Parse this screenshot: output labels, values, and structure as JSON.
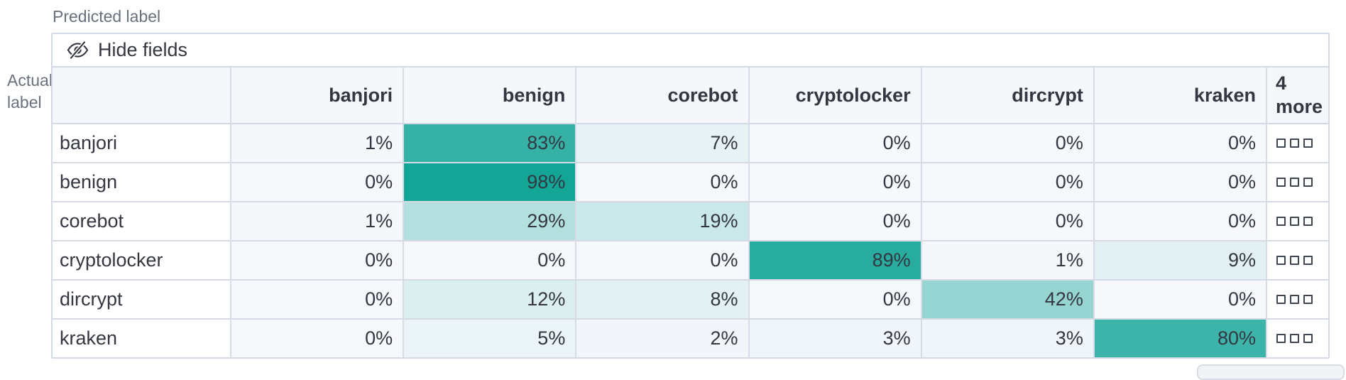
{
  "axes": {
    "predicted": "Predicted label",
    "actual": "Actual label"
  },
  "toolbar": {
    "hide_fields_label": "Hide fields"
  },
  "matrix": {
    "type": "heatmap",
    "value_suffix": "%",
    "columns": [
      "banjori",
      "benign",
      "corebot",
      "cryptolocker",
      "dircrypt",
      "kraken"
    ],
    "more_column_label": "4 more",
    "rows": [
      {
        "label": "banjori",
        "values": [
          1,
          83,
          7,
          0,
          0,
          0
        ]
      },
      {
        "label": "benign",
        "values": [
          0,
          98,
          0,
          0,
          0,
          0
        ]
      },
      {
        "label": "corebot",
        "values": [
          1,
          29,
          19,
          0,
          0,
          0
        ]
      },
      {
        "label": "cryptolocker",
        "values": [
          0,
          0,
          0,
          89,
          1,
          9
        ]
      },
      {
        "label": "dircrypt",
        "values": [
          0,
          12,
          8,
          0,
          42,
          0
        ]
      },
      {
        "label": "kraken",
        "values": [
          0,
          5,
          2,
          3,
          3,
          80
        ]
      }
    ]
  },
  "colors": {
    "heat_base": "#0ea394",
    "cell_zero_bg": "#f7f8fc",
    "header_bg": "#f5f7fa",
    "border": "#d3dae6",
    "text": "#343741",
    "subdued_text": "#69707d"
  }
}
